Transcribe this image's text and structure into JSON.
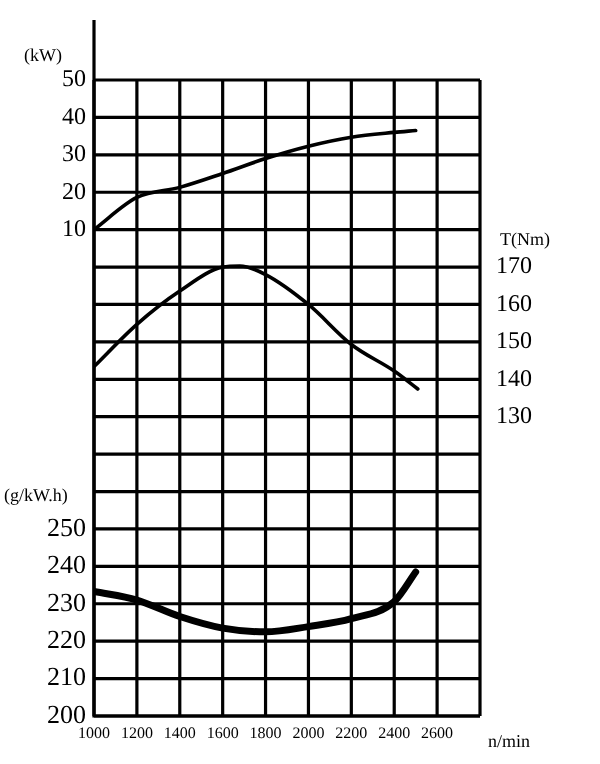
{
  "chart_data": {
    "type": "line",
    "xlabel": "n/min",
    "ylabel": "(kW)",
    "y2label": "T(Nm)",
    "y3label": "(g/kW.h)",
    "xlim": [
      1000,
      2800
    ],
    "xticks": [
      1000,
      1200,
      1400,
      1600,
      1800,
      2000,
      2200,
      2400,
      2600,
      {
        "value": 2800,
        "label": null
      }
    ],
    "ylim": [
      -120,
      50
    ],
    "yticks": [
      10,
      20,
      30,
      40,
      50
    ],
    "y2lim": [
      50,
      220
    ],
    "y2ticks": [
      130,
      140,
      150,
      160,
      170
    ],
    "y3lim": [
      200,
      370
    ],
    "y3ticks": [
      200,
      210,
      220,
      230,
      240,
      250,
      {
        "value": 260,
        "label": null
      },
      {
        "value": 270,
        "label": null
      },
      {
        "value": 280,
        "label": null
      },
      {
        "value": 290,
        "label": null
      },
      {
        "value": 300,
        "label": null
      },
      {
        "value": 310,
        "label": null
      },
      {
        "value": 320,
        "label": null
      },
      {
        "value": 330,
        "label": null
      },
      {
        "value": 340,
        "label": null
      },
      {
        "value": 350,
        "label": null
      },
      {
        "value": 360,
        "label": null
      },
      {
        "value": 370,
        "label": null
      }
    ],
    "grid": true,
    "marker": "none",
    "series": [
      {
        "color": "#000000",
        "axis": "y",
        "x": [
          1000,
          1200,
          1400,
          1600,
          1800,
          2000,
          2200,
          2400,
          2500
        ],
        "values": [
          10,
          18.6,
          21.3,
          25,
          29,
          32.3,
          34.7,
          36,
          36.5
        ]
      },
      {
        "color": "#000000",
        "axis": "y2",
        "x": [
          1000,
          1200,
          1400,
          1600,
          1680,
          1800,
          2000,
          2200,
          2400,
          2510
        ],
        "values": [
          143.4,
          154.7,
          163.6,
          170,
          170.3,
          168,
          160,
          149.3,
          142.2,
          137.4
        ]
      },
      {
        "color": "#000000",
        "axis": "y3",
        "x": [
          1000,
          1200,
          1400,
          1600,
          1800,
          2000,
          2200,
          2400,
          2500
        ],
        "values": [
          233.3,
          231,
          226.6,
          223.5,
          222.5,
          223.9,
          226,
          230.6,
          238.5
        ]
      }
    ]
  }
}
